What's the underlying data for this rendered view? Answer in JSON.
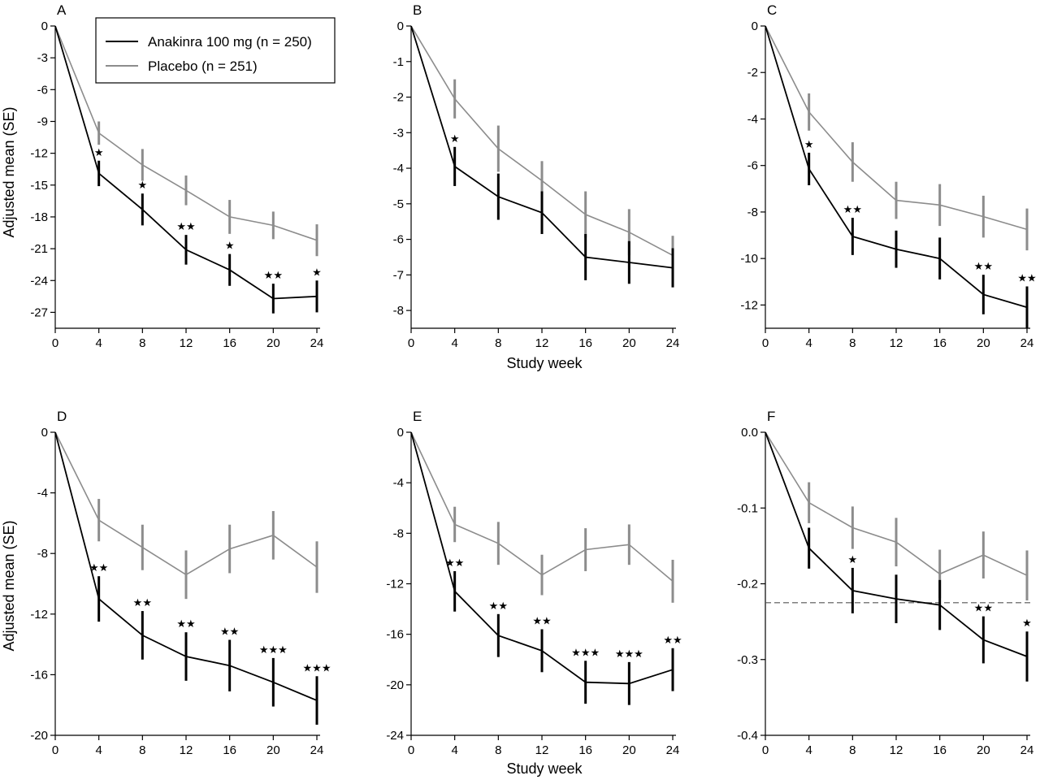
{
  "legend": {
    "position": "top-right of panel A",
    "entries": [
      {
        "label": "Anakinra 100 mg (n = 250)",
        "series": "anakinra"
      },
      {
        "label": "Placebo (n = 251)",
        "series": "placebo"
      }
    ]
  },
  "colors": {
    "anakinra": "#000000",
    "placebo": "#8c8c8c",
    "axis": "#000000",
    "reference_line": "#555555"
  },
  "axis_titles": {
    "ylabel_top": "Adjusted mean (SE)",
    "ylabel_bottom": "Adjusted mean (SE)",
    "xlabel_top": "Study week",
    "xlabel_bottom": "Study week"
  },
  "chart_data": [
    {
      "panel": "A",
      "type": "line",
      "x": [
        0,
        4,
        8,
        12,
        16,
        20,
        24
      ],
      "xlim": [
        0,
        24
      ],
      "ylim": [
        -28.5,
        0
      ],
      "yticks": [
        0,
        -3,
        -6,
        -9,
        -12,
        -15,
        -18,
        -21,
        -24,
        -27
      ],
      "ytick_labels": [
        "0",
        "-3",
        "-6",
        "-9",
        "-12",
        "-15",
        "-18",
        "-21",
        "-24",
        "-27"
      ],
      "series": [
        {
          "key": "anakinra",
          "values": [
            0,
            -13.9,
            -17.3,
            -21.1,
            -23.0,
            -25.7,
            -25.5
          ],
          "se": [
            0,
            1.2,
            1.5,
            1.4,
            1.5,
            1.4,
            1.5
          ]
        },
        {
          "key": "placebo",
          "values": [
            0,
            -10.1,
            -13.1,
            -15.5,
            -18.0,
            -18.8,
            -20.2
          ],
          "se": [
            0,
            1.1,
            1.5,
            1.4,
            1.6,
            1.3,
            1.5
          ]
        }
      ],
      "significance": [
        "",
        "★",
        "★",
        "★★",
        "★",
        "★★",
        "★"
      ]
    },
    {
      "panel": "B",
      "type": "line",
      "x": [
        0,
        4,
        8,
        12,
        16,
        20,
        24
      ],
      "xlim": [
        0,
        24
      ],
      "ylim": [
        -8.5,
        0
      ],
      "yticks": [
        0,
        -1,
        -2,
        -3,
        -4,
        -5,
        -6,
        -7,
        -8
      ],
      "ytick_labels": [
        "0",
        "-1",
        "-2",
        "-3",
        "-4",
        "-5",
        "-6",
        "-7",
        "-8"
      ],
      "series": [
        {
          "key": "anakinra",
          "values": [
            0,
            -3.95,
            -4.8,
            -5.25,
            -6.5,
            -6.65,
            -6.8
          ],
          "se": [
            0,
            0.55,
            0.65,
            0.6,
            0.65,
            0.6,
            0.55
          ]
        },
        {
          "key": "placebo",
          "values": [
            0,
            -2.05,
            -3.45,
            -4.35,
            -5.3,
            -5.8,
            -6.45
          ],
          "se": [
            0,
            0.55,
            0.65,
            0.55,
            0.65,
            0.65,
            0.55
          ]
        }
      ],
      "significance": [
        "",
        "★",
        "",
        "",
        "",
        "",
        ""
      ]
    },
    {
      "panel": "C",
      "type": "line",
      "x": [
        0,
        4,
        8,
        12,
        16,
        20,
        24
      ],
      "xlim": [
        0,
        24
      ],
      "ylim": [
        -13,
        0
      ],
      "yticks": [
        0,
        -2,
        -4,
        -6,
        -8,
        -10,
        -12
      ],
      "ytick_labels": [
        "0",
        "-2",
        "-4",
        "-6",
        "-8",
        "-10",
        "-12"
      ],
      "series": [
        {
          "key": "anakinra",
          "values": [
            0,
            -6.15,
            -9.05,
            -9.6,
            -10.0,
            -11.55,
            -12.1
          ],
          "se": [
            0,
            0.7,
            0.8,
            0.8,
            0.9,
            0.85,
            0.9
          ]
        },
        {
          "key": "placebo",
          "values": [
            0,
            -3.7,
            -5.85,
            -7.5,
            -7.7,
            -8.2,
            -8.75
          ],
          "se": [
            0,
            0.8,
            0.85,
            0.8,
            0.9,
            0.9,
            0.9
          ]
        }
      ],
      "significance": [
        "",
        "★",
        "★★",
        "",
        "",
        "★★",
        "★★"
      ]
    },
    {
      "panel": "D",
      "type": "line",
      "x": [
        0,
        4,
        8,
        12,
        16,
        20,
        24
      ],
      "xlim": [
        0,
        24
      ],
      "ylim": [
        -20,
        0
      ],
      "yticks": [
        0,
        -4,
        -8,
        -12,
        -16,
        -20
      ],
      "ytick_labels": [
        "0",
        "-4",
        "-8",
        "-12",
        "-16",
        "-20"
      ],
      "series": [
        {
          "key": "anakinra",
          "values": [
            0,
            -11.0,
            -13.4,
            -14.8,
            -15.4,
            -16.5,
            -17.7
          ],
          "se": [
            0,
            1.5,
            1.6,
            1.6,
            1.7,
            1.6,
            1.6
          ]
        },
        {
          "key": "placebo",
          "values": [
            0,
            -5.8,
            -7.6,
            -9.4,
            -7.7,
            -6.8,
            -8.9
          ],
          "se": [
            0,
            1.4,
            1.5,
            1.6,
            1.6,
            1.6,
            1.7
          ]
        }
      ],
      "significance": [
        "",
        "★★",
        "★★",
        "★★",
        "★★",
        "★★★",
        "★★★"
      ]
    },
    {
      "panel": "E",
      "type": "line",
      "x": [
        0,
        4,
        8,
        12,
        16,
        20,
        24
      ],
      "xlim": [
        0,
        24
      ],
      "ylim": [
        -24,
        0
      ],
      "yticks": [
        0,
        -4,
        -8,
        -12,
        -16,
        -20,
        -24
      ],
      "ytick_labels": [
        "0",
        "-4",
        "-8",
        "-12",
        "-16",
        "-20",
        "-24"
      ],
      "series": [
        {
          "key": "anakinra",
          "values": [
            0,
            -12.6,
            -16.1,
            -17.3,
            -19.8,
            -19.9,
            -18.8
          ],
          "se": [
            0,
            1.6,
            1.7,
            1.7,
            1.7,
            1.7,
            1.7
          ]
        },
        {
          "key": "placebo",
          "values": [
            0,
            -7.3,
            -8.8,
            -11.3,
            -9.3,
            -8.9,
            -11.8
          ],
          "se": [
            0,
            1.4,
            1.7,
            1.6,
            1.7,
            1.6,
            1.7
          ]
        }
      ],
      "significance": [
        "",
        "★★",
        "★★",
        "★★",
        "★★★",
        "★★★",
        "★★"
      ]
    },
    {
      "panel": "F",
      "type": "line",
      "x": [
        0,
        4,
        8,
        12,
        16,
        20,
        24
      ],
      "xlim": [
        0,
        24
      ],
      "ylim": [
        -0.4,
        0
      ],
      "yticks": [
        0,
        -0.1,
        -0.2,
        -0.3,
        -0.4
      ],
      "ytick_labels": [
        "0.0",
        "-0.1",
        "-0.2",
        "-0.3",
        "-0.4"
      ],
      "series": [
        {
          "key": "anakinra",
          "values": [
            0,
            -0.153,
            -0.209,
            -0.22,
            -0.228,
            -0.274,
            -0.296
          ],
          "se": [
            0,
            0.027,
            0.03,
            0.032,
            0.033,
            0.031,
            0.033
          ]
        },
        {
          "key": "placebo",
          "values": [
            0,
            -0.093,
            -0.126,
            -0.145,
            -0.187,
            -0.162,
            -0.189
          ],
          "se": [
            0,
            0.027,
            0.028,
            0.032,
            0.032,
            0.031,
            0.033
          ]
        }
      ],
      "significance": [
        "",
        "",
        "★",
        "",
        "",
        "★★",
        "★"
      ],
      "reference_line": -0.225
    }
  ]
}
